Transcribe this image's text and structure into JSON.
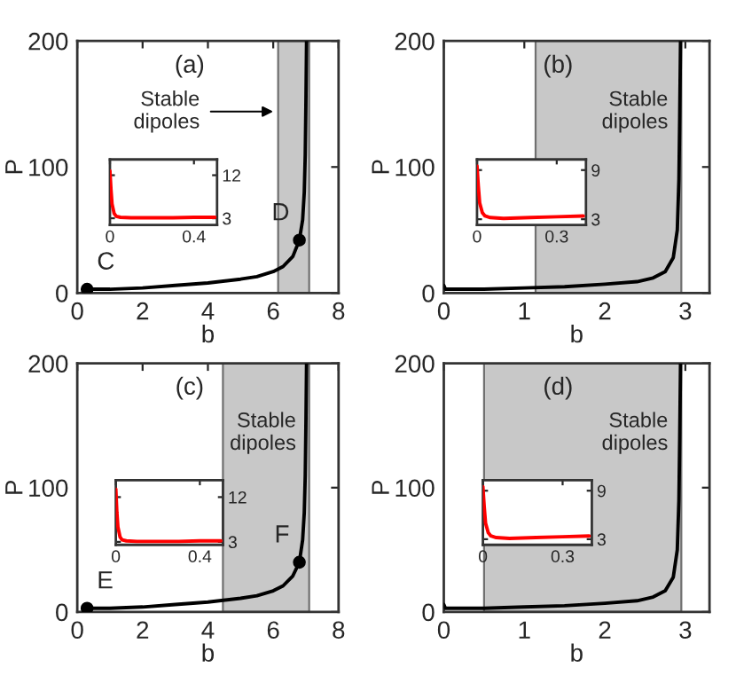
{
  "chart_data": [
    {
      "type": "line",
      "title": "(a)",
      "xlabel": "b",
      "ylabel": "P",
      "xlim": [
        0,
        8
      ],
      "ylim": [
        0,
        200
      ],
      "xticks": [
        0,
        2,
        4,
        6,
        8
      ],
      "yticks": [
        0,
        100,
        200
      ],
      "grid": false,
      "bands": [
        {
          "axis": "x",
          "from": 6.15,
          "to": 7.1,
          "label": "Stable dipoles",
          "color": "#c8c8c8"
        }
      ],
      "series": [
        {
          "color": "#000000",
          "x": [
            0.3,
            1,
            2,
            3,
            4,
            5,
            5.5,
            6,
            6.3,
            6.6,
            6.8,
            6.9,
            6.95,
            6.98,
            7.0,
            7.02
          ],
          "values": [
            3,
            3,
            4,
            6,
            8,
            11,
            13,
            17,
            21,
            29,
            42,
            58,
            80,
            110,
            150,
            200
          ]
        },
        {
          "type": "scatter",
          "name": "C",
          "color": "#000000",
          "marker": "circle",
          "x": [
            0.3
          ],
          "values": [
            3
          ]
        },
        {
          "type": "scatter",
          "name": "D",
          "color": "#000000",
          "marker": "circle",
          "x": [
            6.8
          ],
          "values": [
            42
          ]
        }
      ]
    },
    {
      "type": "line",
      "xlim": [
        0,
        0.51
      ],
      "ylim": [
        1.6,
        15.3
      ],
      "xticks": [
        0,
        0.4
      ],
      "yticks": [
        3,
        12
      ],
      "grid": false,
      "series": [
        {
          "color": "#ff0000",
          "x": [
            0,
            0.005,
            0.01,
            0.02,
            0.03,
            0.05,
            0.1,
            0.2,
            0.3,
            0.4,
            0.5
          ],
          "values": [
            12.9,
            9,
            6,
            4,
            3.4,
            3.2,
            3.1,
            3.1,
            3.1,
            3.2,
            3.2
          ]
        }
      ]
    },
    {
      "type": "line",
      "title": "(b)",
      "xlabel": "b",
      "ylabel": "P",
      "xlim": [
        0,
        3.3
      ],
      "ylim": [
        0,
        200
      ],
      "xticks": [
        0,
        1,
        2,
        3
      ],
      "yticks": [
        0,
        100,
        200
      ],
      "grid": false,
      "bands": [
        {
          "axis": "x",
          "from": 1.14,
          "to": 2.95,
          "label": "Stable dipoles",
          "color": "#c8c8c8"
        }
      ],
      "series": [
        {
          "color": "#000000",
          "x": [
            0,
            0.02,
            0.1,
            0.5,
            1,
            1.5,
            2,
            2.4,
            2.6,
            2.75,
            2.85,
            2.9,
            2.92,
            2.93,
            2.94
          ],
          "values": [
            6,
            3,
            3,
            3,
            4,
            5,
            7,
            9,
            12,
            17,
            28,
            50,
            90,
            140,
            200
          ]
        }
      ]
    },
    {
      "type": "line",
      "xlim": [
        0,
        0.41
      ],
      "ylim": [
        2.3,
        10.3
      ],
      "xticks": [
        0,
        0.3
      ],
      "yticks": [
        3,
        9
      ],
      "grid": false,
      "series": [
        {
          "color": "#ff0000",
          "x": [
            0,
            0.005,
            0.01,
            0.02,
            0.03,
            0.05,
            0.1,
            0.2,
            0.3,
            0.4
          ],
          "values": [
            9.5,
            7,
            5,
            3.8,
            3.4,
            3.2,
            3.1,
            3.2,
            3.3,
            3.4
          ]
        }
      ]
    },
    {
      "type": "line",
      "title": "(c)",
      "xlabel": "b",
      "ylabel": "P",
      "xlim": [
        0,
        8
      ],
      "ylim": [
        0,
        200
      ],
      "xticks": [
        0,
        2,
        4,
        6,
        8
      ],
      "yticks": [
        0,
        100,
        200
      ],
      "grid": false,
      "bands": [
        {
          "axis": "x",
          "from": 4.46,
          "to": 7.1,
          "label": "Stable dipoles",
          "color": "#c8c8c8"
        }
      ],
      "series": [
        {
          "color": "#000000",
          "x": [
            0.3,
            1,
            2,
            3,
            4,
            5,
            5.5,
            6,
            6.3,
            6.6,
            6.8,
            6.9,
            6.95,
            6.98,
            7.0,
            7.02
          ],
          "values": [
            3,
            3,
            4,
            6,
            8,
            11,
            13,
            17,
            21,
            29,
            40,
            58,
            80,
            110,
            150,
            200
          ]
        },
        {
          "type": "scatter",
          "name": "E",
          "color": "#000000",
          "marker": "circle",
          "x": [
            0.3
          ],
          "values": [
            3
          ]
        },
        {
          "type": "scatter",
          "name": "F",
          "color": "#000000",
          "marker": "circle",
          "x": [
            6.8
          ],
          "values": [
            40
          ]
        }
      ]
    },
    {
      "type": "line",
      "xlim": [
        0,
        0.51
      ],
      "ylim": [
        2.4,
        15.4
      ],
      "xticks": [
        0,
        0.4
      ],
      "yticks": [
        3,
        12
      ],
      "grid": false,
      "series": [
        {
          "color": "#ff0000",
          "x": [
            0,
            0.005,
            0.01,
            0.02,
            0.03,
            0.05,
            0.1,
            0.2,
            0.3,
            0.4,
            0.5
          ],
          "values": [
            13.6,
            9,
            6,
            4,
            3.4,
            3.2,
            3.1,
            3.1,
            3.1,
            3.2,
            3.2
          ]
        }
      ]
    },
    {
      "type": "line",
      "title": "(d)",
      "xlabel": "b",
      "ylabel": "P",
      "xlim": [
        0,
        3.3
      ],
      "ylim": [
        0,
        200
      ],
      "xticks": [
        0,
        1,
        2,
        3
      ],
      "yticks": [
        0,
        100,
        200
      ],
      "grid": false,
      "bands": [
        {
          "axis": "x",
          "from": 0.5,
          "to": 2.95,
          "label": "Stable dipoles",
          "color": "#c8c8c8"
        }
      ],
      "series": [
        {
          "color": "#000000",
          "x": [
            0,
            0.02,
            0.1,
            0.5,
            1,
            1.5,
            2,
            2.4,
            2.6,
            2.75,
            2.85,
            2.9,
            2.92,
            2.93,
            2.94
          ],
          "values": [
            6,
            3,
            3,
            3,
            4,
            5,
            7,
            9,
            12,
            17,
            28,
            50,
            90,
            140,
            200
          ]
        }
      ]
    },
    {
      "type": "line",
      "xlim": [
        0,
        0.41
      ],
      "ylim": [
        2.3,
        10.3
      ],
      "xticks": [
        0,
        0.3
      ],
      "yticks": [
        3,
        9
      ],
      "grid": false,
      "series": [
        {
          "color": "#ff0000",
          "x": [
            0,
            0.005,
            0.01,
            0.02,
            0.03,
            0.05,
            0.1,
            0.2,
            0.3,
            0.4
          ],
          "values": [
            9.5,
            7,
            5,
            3.8,
            3.4,
            3.2,
            3.1,
            3.2,
            3.3,
            3.4
          ]
        }
      ]
    }
  ]
}
